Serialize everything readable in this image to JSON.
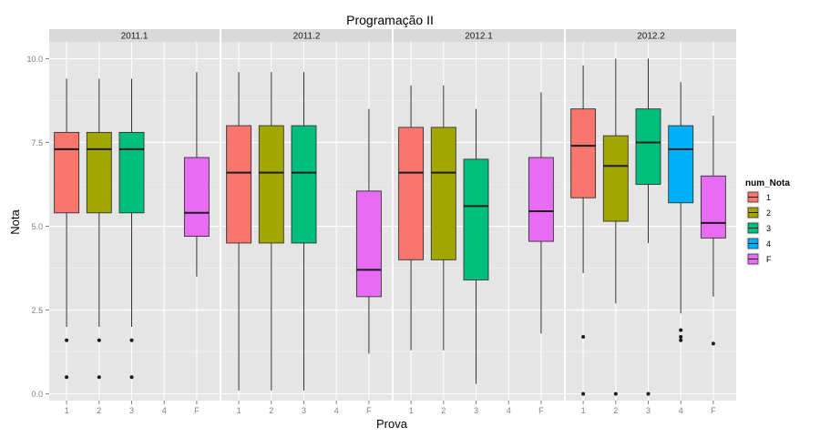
{
  "chart_data": {
    "type": "boxplot",
    "title": "Programação II",
    "xlabel": "Prova",
    "ylabel": "Nota",
    "ylim": [
      -0.2,
      10.5
    ],
    "yticks": [
      0,
      2.5,
      5,
      7.5,
      10
    ],
    "ytick_labels": [
      "0.0",
      "2.5",
      "5.0",
      "7.5",
      "10.0"
    ],
    "categories": [
      "1",
      "2",
      "3",
      "4",
      "F"
    ],
    "grid": true,
    "legend_position": "right",
    "legend": {
      "title": "num_Nota",
      "items": [
        {
          "label": "1",
          "color": "#F8766D"
        },
        {
          "label": "2",
          "color": "#A3A500"
        },
        {
          "label": "3",
          "color": "#00BF7D"
        },
        {
          "label": "4",
          "color": "#00B0F6"
        },
        {
          "label": "F",
          "color": "#E76BF3"
        }
      ]
    },
    "facets": [
      {
        "label": "2011.1",
        "boxes": [
          {
            "category": "1",
            "min": 2.0,
            "q1": 5.4,
            "median": 7.3,
            "q3": 7.8,
            "max": 9.4,
            "outliers": [
              1.6,
              0.5
            ]
          },
          {
            "category": "2",
            "min": 2.0,
            "q1": 5.4,
            "median": 7.3,
            "q3": 7.8,
            "max": 9.4,
            "outliers": [
              1.6,
              0.5
            ]
          },
          {
            "category": "3",
            "min": 2.0,
            "q1": 5.4,
            "median": 7.3,
            "q3": 7.8,
            "max": 9.4,
            "outliers": [
              1.6,
              0.5
            ]
          },
          {
            "category": "F",
            "min": 3.5,
            "q1": 4.7,
            "median": 5.4,
            "q3": 7.05,
            "max": 9.6,
            "outliers": []
          }
        ]
      },
      {
        "label": "2011.2",
        "boxes": [
          {
            "category": "1",
            "min": 0.1,
            "q1": 4.5,
            "median": 6.6,
            "q3": 8.0,
            "max": 9.6,
            "outliers": []
          },
          {
            "category": "2",
            "min": 0.1,
            "q1": 4.5,
            "median": 6.6,
            "q3": 8.0,
            "max": 9.6,
            "outliers": []
          },
          {
            "category": "3",
            "min": 0.1,
            "q1": 4.5,
            "median": 6.6,
            "q3": 8.0,
            "max": 9.6,
            "outliers": []
          },
          {
            "category": "F",
            "min": 1.2,
            "q1": 2.9,
            "median": 3.7,
            "q3": 6.05,
            "max": 8.5,
            "outliers": []
          }
        ]
      },
      {
        "label": "2012.1",
        "boxes": [
          {
            "category": "1",
            "min": 1.3,
            "q1": 4.0,
            "median": 6.6,
            "q3": 7.95,
            "max": 9.2,
            "outliers": []
          },
          {
            "category": "2",
            "min": 1.3,
            "q1": 4.0,
            "median": 6.6,
            "q3": 7.95,
            "max": 9.2,
            "outliers": []
          },
          {
            "category": "3",
            "min": 0.3,
            "q1": 3.4,
            "median": 5.6,
            "q3": 7.0,
            "max": 8.5,
            "outliers": []
          },
          {
            "category": "F",
            "min": 1.8,
            "q1": 4.55,
            "median": 5.45,
            "q3": 7.05,
            "max": 9.0,
            "outliers": []
          }
        ]
      },
      {
        "label": "2012.2",
        "boxes": [
          {
            "category": "1",
            "min": 3.6,
            "q1": 5.85,
            "median": 7.4,
            "q3": 8.5,
            "max": 9.8,
            "outliers": [
              1.7,
              0.0
            ]
          },
          {
            "category": "2",
            "min": 2.7,
            "q1": 5.15,
            "median": 6.8,
            "q3": 7.7,
            "max": 10.0,
            "outliers": [
              0.0
            ]
          },
          {
            "category": "3",
            "min": 4.5,
            "q1": 6.25,
            "median": 7.5,
            "q3": 8.5,
            "max": 10.0,
            "outliers": [
              0.0
            ]
          },
          {
            "category": "4",
            "min": 2.4,
            "q1": 5.7,
            "median": 7.3,
            "q3": 8.0,
            "max": 9.3,
            "outliers": [
              1.9,
              1.7,
              1.6
            ]
          },
          {
            "category": "F",
            "min": 2.9,
            "q1": 4.65,
            "median": 5.1,
            "q3": 6.5,
            "max": 8.3,
            "outliers": [
              1.5
            ]
          }
        ]
      }
    ]
  }
}
